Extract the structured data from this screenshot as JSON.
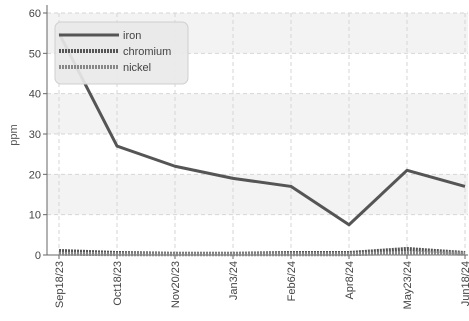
{
  "chart_data": {
    "type": "line",
    "title": "",
    "xlabel": "",
    "ylabel": "ppm",
    "x": [
      "Sep18/23",
      "Oct18/23",
      "Nov20/23",
      "Jan3/24",
      "Feb6/24",
      "Apr8/24",
      "May23/24",
      "Jun18/24"
    ],
    "ylim": [
      0,
      60
    ],
    "yticks": [
      0,
      10,
      20,
      30,
      40,
      50,
      60
    ],
    "grid": true,
    "legend_position": "top-left",
    "series": [
      {
        "name": "iron",
        "values": [
          55,
          27,
          22,
          19,
          17,
          7.5,
          21,
          17
        ],
        "color": "#555555",
        "style": "solid"
      },
      {
        "name": "chromium",
        "values": [
          1,
          0.5,
          0.3,
          0.3,
          0.5,
          0.5,
          1.5,
          0.5
        ],
        "color": "#555555",
        "style": "dotted"
      },
      {
        "name": "nickel",
        "values": [
          0.3,
          0.2,
          0.2,
          0.2,
          0.2,
          0.2,
          0.5,
          0.3
        ],
        "color": "#888888",
        "style": "dotted"
      }
    ]
  }
}
